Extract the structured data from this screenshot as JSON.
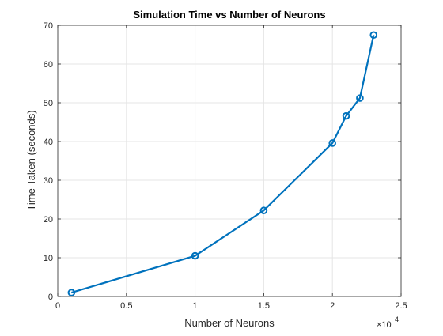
{
  "chart_data": {
    "type": "line",
    "title": "Simulation Time vs Number of Neurons",
    "xlabel": "Number of Neurons",
    "ylabel": "Time Taken (seconds)",
    "x_exponent_label": "×10",
    "x_exponent_power": "4",
    "xlim": [
      0,
      2.5
    ],
    "ylim": [
      0,
      70
    ],
    "xticks": [
      "0",
      "0.5",
      "1",
      "1.5",
      "2",
      "2.5"
    ],
    "yticks": [
      "0",
      "10",
      "20",
      "30",
      "40",
      "50",
      "60",
      "70"
    ],
    "grid": true,
    "series": [
      {
        "marker": "circle",
        "color": "#0072BD",
        "x": [
          1000,
          10000,
          15000,
          20000,
          21000,
          22000,
          23000
        ],
        "y": [
          1,
          10.5,
          22.2,
          39.6,
          46.6,
          51.2,
          67.5
        ]
      }
    ]
  },
  "colors": {
    "line": "#0072BD",
    "grid": "#e5e5e5",
    "axis": "#262626",
    "text": "#262626"
  }
}
